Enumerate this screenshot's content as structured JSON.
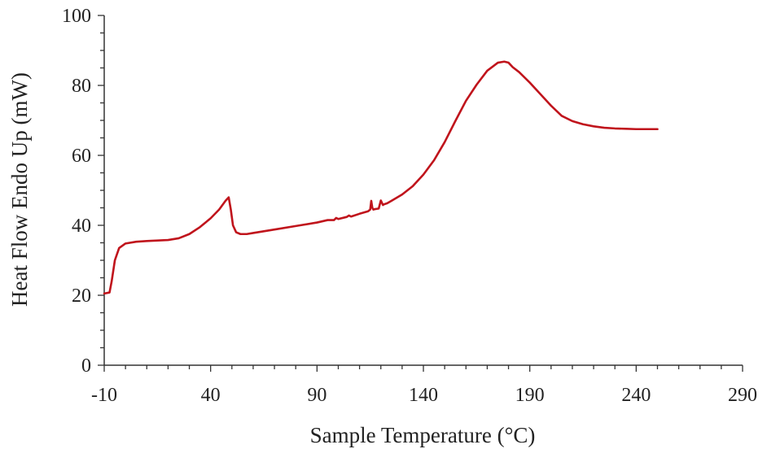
{
  "chart_data": {
    "type": "line",
    "title": "",
    "xlabel": "Sample Temperature (°C)",
    "ylabel": "Heat Flow Endo Up (mW)",
    "xlim": [
      -10,
      290
    ],
    "ylim": [
      0,
      100
    ],
    "x_ticks": [
      -10,
      40,
      90,
      140,
      190,
      240,
      290
    ],
    "x_tick_labels": [
      "-10",
      "40",
      "90",
      "140",
      "190",
      "240",
      "290"
    ],
    "y_ticks": [
      0,
      20,
      40,
      60,
      80,
      100
    ],
    "y_tick_labels": [
      "0",
      "20",
      "40",
      "60",
      "80",
      "100"
    ],
    "grid": false,
    "legend": "none",
    "series": [
      {
        "color": "#c0141c",
        "x": [
          -10,
          -7.5,
          -6.5,
          -5,
          -3,
          0,
          5,
          10,
          20,
          25,
          30,
          35,
          40,
          44,
          47,
          48.5,
          49.5,
          50.5,
          52,
          54,
          57,
          60,
          70,
          80,
          90,
          95,
          98,
          99,
          100,
          104,
          105,
          106,
          110,
          114,
          115,
          115.5,
          116,
          116.5,
          117,
          119,
          120,
          121,
          121.5,
          122,
          123,
          125,
          130,
          135,
          140,
          145,
          150,
          155,
          160,
          165,
          170,
          175,
          178,
          180,
          182,
          185,
          190,
          195,
          200,
          205,
          210,
          215,
          220,
          225,
          230,
          235,
          240,
          245,
          250
        ],
        "y": [
          20.5,
          20.8,
          24,
          30,
          33.5,
          34.8,
          35.3,
          35.5,
          35.8,
          36.3,
          37.5,
          39.5,
          42,
          44.5,
          47,
          48,
          44.5,
          40,
          38,
          37.5,
          37.5,
          37.8,
          38.8,
          39.8,
          40.8,
          41.5,
          41.5,
          42.1,
          41.8,
          42.4,
          42.8,
          42.5,
          43.3,
          44,
          44.5,
          47,
          45,
          44.5,
          44.6,
          44.8,
          47.1,
          45.8,
          46,
          46.1,
          46.3,
          47,
          48.8,
          51.2,
          54.5,
          58.6,
          63.8,
          69.8,
          75.6,
          80.2,
          84.2,
          86.5,
          86.8,
          86.5,
          85.2,
          83.8,
          80.8,
          77.5,
          74.2,
          71.3,
          69.8,
          68.9,
          68.3,
          67.9,
          67.7,
          67.6,
          67.5,
          67.5,
          67.5
        ]
      }
    ]
  }
}
